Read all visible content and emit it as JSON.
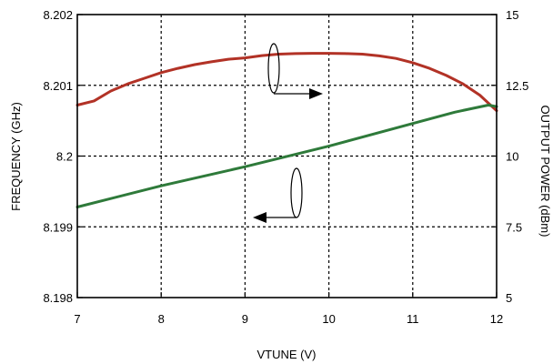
{
  "chart_data": {
    "type": "line",
    "xlabel": "VTUNE (V)",
    "ylabel_left": "FREQUENCY (GHz)",
    "ylabel_right": "OUTPUT POWER (dBm)",
    "xlim": [
      7,
      12
    ],
    "ylim_left": [
      8.198,
      8.202
    ],
    "ylim_right": [
      5,
      15
    ],
    "grid": "dashed",
    "x_ticks": [
      "7",
      "8",
      "9",
      "10",
      "11",
      "12"
    ],
    "y_left_ticks": [
      "8.198",
      "8.199",
      "8.2",
      "8.201",
      "8.202"
    ],
    "y_right_ticks": [
      "5",
      "7.5",
      "10",
      "12.5",
      "15"
    ],
    "series": [
      {
        "axis": "right",
        "color": "#b23226",
        "x": [
          7.0,
          7.2,
          7.4,
          7.6,
          7.8,
          8.0,
          8.2,
          8.4,
          8.6,
          8.8,
          9.0,
          9.2,
          9.4,
          9.6,
          9.8,
          10.0,
          10.2,
          10.4,
          10.6,
          10.8,
          11.0,
          11.2,
          11.4,
          11.6,
          11.8,
          12.0
        ],
        "values": [
          11.8,
          11.95,
          12.3,
          12.55,
          12.75,
          12.95,
          13.1,
          13.23,
          13.33,
          13.42,
          13.47,
          13.55,
          13.6,
          13.62,
          13.63,
          13.63,
          13.62,
          13.6,
          13.54,
          13.45,
          13.3,
          13.1,
          12.85,
          12.55,
          12.15,
          11.6
        ]
      },
      {
        "axis": "left",
        "color": "#2e7a3a",
        "x": [
          7.0,
          8.0,
          9.0,
          10.0,
          11.0,
          11.5,
          11.9,
          12.0
        ],
        "values": [
          8.19928,
          8.19958,
          8.19985,
          8.20014,
          8.20046,
          8.20062,
          8.20072,
          8.2007
        ]
      }
    ]
  },
  "colors": {
    "axis": "#000000",
    "grid": "#000000"
  },
  "icons": [
    "right-arrow-icon",
    "left-arrow-icon",
    "ellipse-marker-icon"
  ]
}
